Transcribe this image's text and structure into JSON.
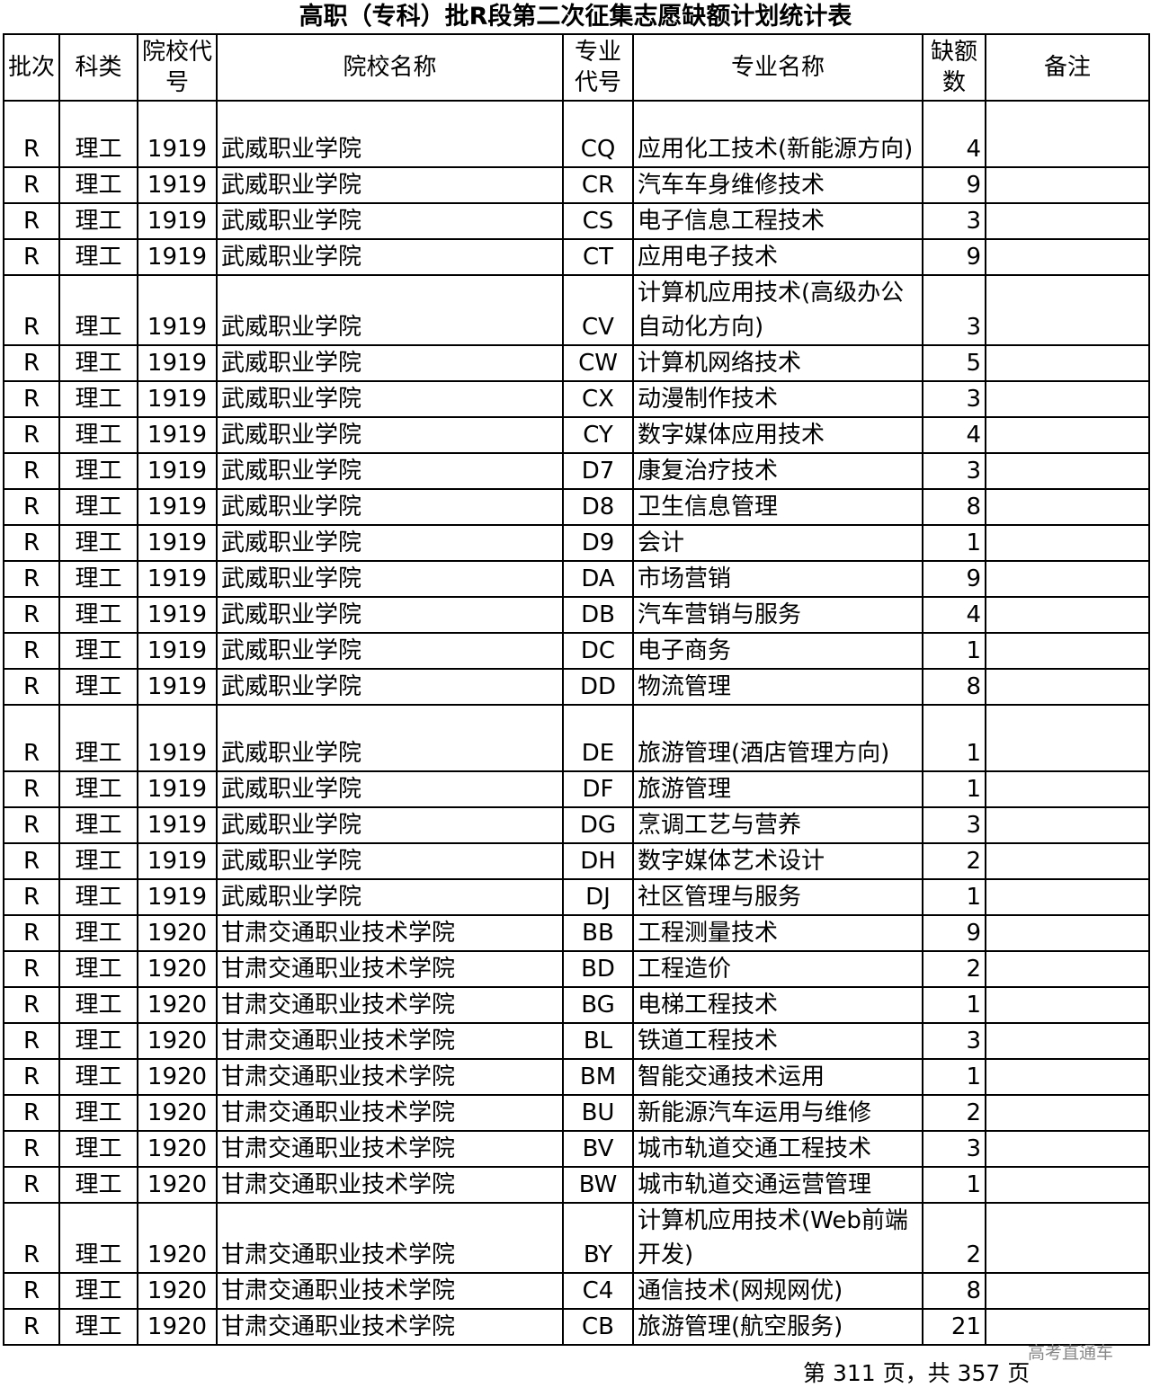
{
  "title": "高职（专科）批R段第二次征集志愿缺额计划统计表",
  "headers": [
    "批次",
    "科类",
    "院校代号",
    "院校名称",
    "专业代号",
    "专业名称",
    "缺额数",
    "备注"
  ],
  "rows": [
    {
      "batch": "R",
      "category": "理工",
      "school_code": "1919",
      "school": "武威职业学院",
      "major_code": "CQ",
      "major": "应用化工技术(新能源方向)",
      "vacancies": "4",
      "note": "",
      "double": true
    },
    {
      "batch": "R",
      "category": "理工",
      "school_code": "1919",
      "school": "武威职业学院",
      "major_code": "CR",
      "major": "汽车车身维修技术",
      "vacancies": "9",
      "note": ""
    },
    {
      "batch": "R",
      "category": "理工",
      "school_code": "1919",
      "school": "武威职业学院",
      "major_code": "CS",
      "major": "电子信息工程技术",
      "vacancies": "3",
      "note": ""
    },
    {
      "batch": "R",
      "category": "理工",
      "school_code": "1919",
      "school": "武威职业学院",
      "major_code": "CT",
      "major": "应用电子技术",
      "vacancies": "9",
      "note": ""
    },
    {
      "batch": "R",
      "category": "理工",
      "school_code": "1919",
      "school": "武威职业学院",
      "major_code": "CV",
      "major": "计算机应用技术(高级办公自动化方向)",
      "vacancies": "3",
      "note": "",
      "double": true
    },
    {
      "batch": "R",
      "category": "理工",
      "school_code": "1919",
      "school": "武威职业学院",
      "major_code": "CW",
      "major": "计算机网络技术",
      "vacancies": "5",
      "note": ""
    },
    {
      "batch": "R",
      "category": "理工",
      "school_code": "1919",
      "school": "武威职业学院",
      "major_code": "CX",
      "major": "动漫制作技术",
      "vacancies": "3",
      "note": ""
    },
    {
      "batch": "R",
      "category": "理工",
      "school_code": "1919",
      "school": "武威职业学院",
      "major_code": "CY",
      "major": "数字媒体应用技术",
      "vacancies": "4",
      "note": ""
    },
    {
      "batch": "R",
      "category": "理工",
      "school_code": "1919",
      "school": "武威职业学院",
      "major_code": "D7",
      "major": "康复治疗技术",
      "vacancies": "3",
      "note": ""
    },
    {
      "batch": "R",
      "category": "理工",
      "school_code": "1919",
      "school": "武威职业学院",
      "major_code": "D8",
      "major": "卫生信息管理",
      "vacancies": "8",
      "note": ""
    },
    {
      "batch": "R",
      "category": "理工",
      "school_code": "1919",
      "school": "武威职业学院",
      "major_code": "D9",
      "major": "会计",
      "vacancies": "1",
      "note": ""
    },
    {
      "batch": "R",
      "category": "理工",
      "school_code": "1919",
      "school": "武威职业学院",
      "major_code": "DA",
      "major": "市场营销",
      "vacancies": "9",
      "note": ""
    },
    {
      "batch": "R",
      "category": "理工",
      "school_code": "1919",
      "school": "武威职业学院",
      "major_code": "DB",
      "major": "汽车营销与服务",
      "vacancies": "4",
      "note": ""
    },
    {
      "batch": "R",
      "category": "理工",
      "school_code": "1919",
      "school": "武威职业学院",
      "major_code": "DC",
      "major": "电子商务",
      "vacancies": "1",
      "note": ""
    },
    {
      "batch": "R",
      "category": "理工",
      "school_code": "1919",
      "school": "武威职业学院",
      "major_code": "DD",
      "major": "物流管理",
      "vacancies": "8",
      "note": ""
    },
    {
      "batch": "R",
      "category": "理工",
      "school_code": "1919",
      "school": "武威职业学院",
      "major_code": "DE",
      "major": "旅游管理(酒店管理方向)",
      "vacancies": "1",
      "note": "",
      "double": true
    },
    {
      "batch": "R",
      "category": "理工",
      "school_code": "1919",
      "school": "武威职业学院",
      "major_code": "DF",
      "major": "旅游管理",
      "vacancies": "1",
      "note": ""
    },
    {
      "batch": "R",
      "category": "理工",
      "school_code": "1919",
      "school": "武威职业学院",
      "major_code": "DG",
      "major": "烹调工艺与营养",
      "vacancies": "3",
      "note": ""
    },
    {
      "batch": "R",
      "category": "理工",
      "school_code": "1919",
      "school": "武威职业学院",
      "major_code": "DH",
      "major": "数字媒体艺术设计",
      "vacancies": "2",
      "note": ""
    },
    {
      "batch": "R",
      "category": "理工",
      "school_code": "1919",
      "school": "武威职业学院",
      "major_code": "DJ",
      "major": "社区管理与服务",
      "vacancies": "1",
      "note": ""
    },
    {
      "batch": "R",
      "category": "理工",
      "school_code": "1920",
      "school": "甘肃交通职业技术学院",
      "major_code": "BB",
      "major": "工程测量技术",
      "vacancies": "9",
      "note": ""
    },
    {
      "batch": "R",
      "category": "理工",
      "school_code": "1920",
      "school": "甘肃交通职业技术学院",
      "major_code": "BD",
      "major": "工程造价",
      "vacancies": "2",
      "note": ""
    },
    {
      "batch": "R",
      "category": "理工",
      "school_code": "1920",
      "school": "甘肃交通职业技术学院",
      "major_code": "BG",
      "major": "电梯工程技术",
      "vacancies": "1",
      "note": ""
    },
    {
      "batch": "R",
      "category": "理工",
      "school_code": "1920",
      "school": "甘肃交通职业技术学院",
      "major_code": "BL",
      "major": "铁道工程技术",
      "vacancies": "3",
      "note": ""
    },
    {
      "batch": "R",
      "category": "理工",
      "school_code": "1920",
      "school": "甘肃交通职业技术学院",
      "major_code": "BM",
      "major": "智能交通技术运用",
      "vacancies": "1",
      "note": ""
    },
    {
      "batch": "R",
      "category": "理工",
      "school_code": "1920",
      "school": "甘肃交通职业技术学院",
      "major_code": "BU",
      "major": "新能源汽车运用与维修",
      "vacancies": "2",
      "note": ""
    },
    {
      "batch": "R",
      "category": "理工",
      "school_code": "1920",
      "school": "甘肃交通职业技术学院",
      "major_code": "BV",
      "major": "城市轨道交通工程技术",
      "vacancies": "3",
      "note": ""
    },
    {
      "batch": "R",
      "category": "理工",
      "school_code": "1920",
      "school": "甘肃交通职业技术学院",
      "major_code": "BW",
      "major": "城市轨道交通运营管理",
      "vacancies": "1",
      "note": ""
    },
    {
      "batch": "R",
      "category": "理工",
      "school_code": "1920",
      "school": "甘肃交通职业技术学院",
      "major_code": "BY",
      "major": "计算机应用技术(Web前端开发)",
      "vacancies": "2",
      "note": "",
      "double": true
    },
    {
      "batch": "R",
      "category": "理工",
      "school_code": "1920",
      "school": "甘肃交通职业技术学院",
      "major_code": "C4",
      "major": "通信技术(网规网优)",
      "vacancies": "8",
      "note": ""
    },
    {
      "batch": "R",
      "category": "理工",
      "school_code": "1920",
      "school": "甘肃交通职业技术学院",
      "major_code": "CB",
      "major": "旅游管理(航空服务)",
      "vacancies": "21",
      "note": ""
    }
  ],
  "footer": {
    "page_info": "第 311 页，共 357 页",
    "watermark": "高考直通车"
  }
}
